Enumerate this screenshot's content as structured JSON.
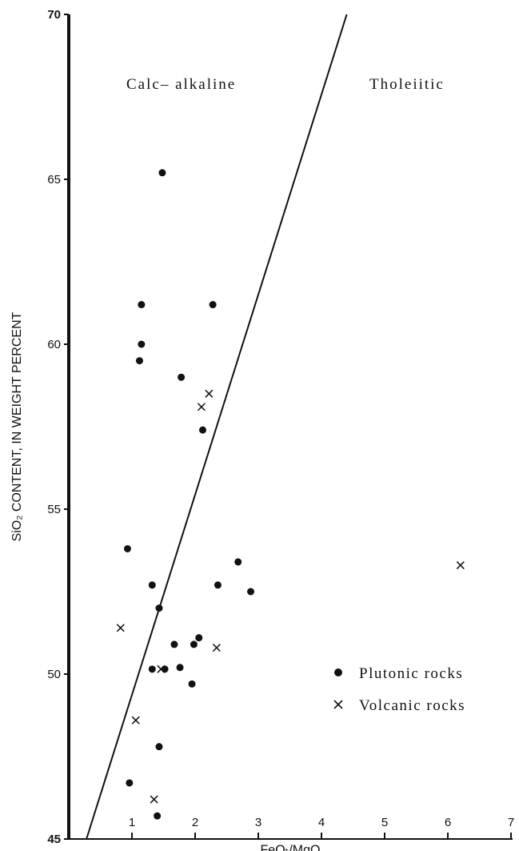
{
  "chart_data": {
    "type": "scatter",
    "xlabel": "FeOₜ/MgO",
    "ylabel": "SiO₂ CONTENT, IN WEIGHT PERCENT",
    "xlim": [
      0,
      7
    ],
    "ylim": [
      45,
      70
    ],
    "x_ticks": [
      "1",
      "2",
      "3",
      "4",
      "5",
      "6",
      "7"
    ],
    "y_ticks": [
      "45",
      "50",
      "55",
      "60",
      "65",
      "70"
    ],
    "regions": [
      "Calc– alkaline",
      "Tholeiitic"
    ],
    "dividing_line": [
      [
        0.28,
        45
      ],
      [
        4.4,
        70
      ]
    ],
    "grid": false,
    "legend_position": "bottom-right",
    "series": [
      {
        "name": "Plutonic rocks",
        "marker": "filled-circle",
        "points": [
          [
            1.48,
            65.2
          ],
          [
            1.15,
            61.2
          ],
          [
            2.28,
            61.2
          ],
          [
            1.15,
            60.0
          ],
          [
            1.12,
            59.5
          ],
          [
            1.78,
            59.0
          ],
          [
            2.12,
            57.4
          ],
          [
            0.93,
            53.8
          ],
          [
            2.68,
            53.4
          ],
          [
            1.32,
            52.7
          ],
          [
            2.36,
            52.7
          ],
          [
            2.88,
            52.5
          ],
          [
            1.43,
            52.0
          ],
          [
            2.06,
            51.1
          ],
          [
            1.67,
            50.9
          ],
          [
            1.98,
            50.9
          ],
          [
            1.32,
            50.15
          ],
          [
            1.52,
            50.15
          ],
          [
            1.76,
            50.2
          ],
          [
            1.95,
            49.7
          ],
          [
            1.43,
            47.8
          ],
          [
            0.96,
            46.7
          ],
          [
            1.4,
            45.7
          ]
        ]
      },
      {
        "name": "Volcanic rocks",
        "marker": "x",
        "points": [
          [
            2.22,
            58.5
          ],
          [
            2.1,
            58.1
          ],
          [
            6.2,
            53.3
          ],
          [
            0.82,
            51.4
          ],
          [
            2.34,
            50.8
          ],
          [
            1.46,
            50.15
          ],
          [
            1.06,
            48.6
          ],
          [
            1.35,
            46.2
          ]
        ]
      }
    ]
  }
}
